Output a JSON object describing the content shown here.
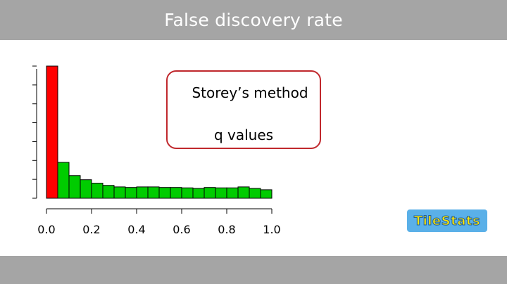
{
  "header": {
    "title": "False discovery rate"
  },
  "method_box": {
    "line1": "Storey’s method",
    "line2": "q values"
  },
  "logo": {
    "text": "TileStats"
  },
  "colors": {
    "bar_red": "#ff0000",
    "bar_green": "#00cc00",
    "box_border": "#c0282d",
    "bar_gray": "#a5a5a5"
  },
  "chart_data": {
    "type": "bar",
    "title": "",
    "xlabel": "",
    "ylabel": "",
    "xlim": [
      0,
      1
    ],
    "ylim": [
      0,
      7
    ],
    "bin_width": 0.05,
    "x_ticks": [
      "0.0",
      "0.2",
      "0.4",
      "0.6",
      "0.8",
      "1.0"
    ],
    "bin_starts": [
      0.0,
      0.05,
      0.1,
      0.15,
      0.2,
      0.25,
      0.3,
      0.35,
      0.4,
      0.45,
      0.5,
      0.55,
      0.6,
      0.65,
      0.7,
      0.75,
      0.8,
      0.85,
      0.9,
      0.95
    ],
    "values": [
      7.0,
      1.9,
      1.2,
      0.98,
      0.8,
      0.68,
      0.6,
      0.57,
      0.6,
      0.6,
      0.57,
      0.57,
      0.55,
      0.52,
      0.57,
      0.55,
      0.55,
      0.6,
      0.52,
      0.45
    ],
    "highlight_first_bin": true
  }
}
